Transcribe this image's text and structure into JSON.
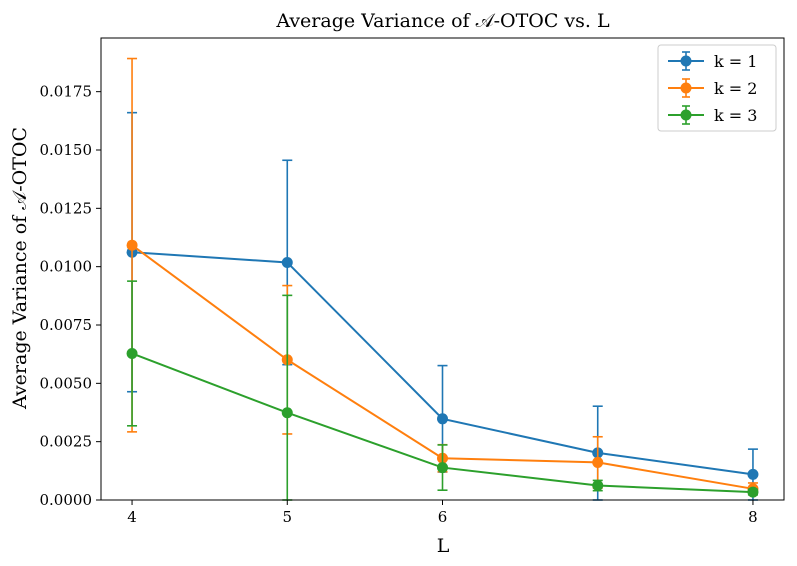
{
  "chart_data": {
    "type": "line",
    "title": "Average Variance of 𝒜-OTOC vs. L",
    "xlabel": "L",
    "ylabel": "Average Variance of 𝒜-OTOC",
    "xlim": [
      3.8,
      8.2
    ],
    "ylim": [
      0,
      0.0198
    ],
    "xticks": [
      4,
      5,
      6,
      8
    ],
    "xtick_labels": [
      "4",
      "5",
      "6",
      "8"
    ],
    "yticks": [
      0,
      0.0025,
      0.005,
      0.0075,
      0.01,
      0.0125,
      0.015,
      0.0175
    ],
    "ytick_labels": [
      "0.0000",
      "0.0025",
      "0.0050",
      "0.0075",
      "0.0100",
      "0.0125",
      "0.0150",
      "0.0175"
    ],
    "legend_position": "top-right",
    "grid": false,
    "series": [
      {
        "name": "k = 1",
        "color": "#1f77b4",
        "x": [
          4,
          5,
          6,
          7,
          8
        ],
        "y": [
          0.01062,
          0.01018,
          0.00348,
          0.00202,
          0.0011
        ],
        "err_low": [
          0.00598,
          0.00438,
          0.00228,
          0.00202,
          0.0011
        ],
        "err_high": [
          0.00598,
          0.00438,
          0.00228,
          0.002,
          0.00108
        ]
      },
      {
        "name": "k = 2",
        "color": "#ff7f0e",
        "x": [
          4,
          5,
          6,
          7,
          8
        ],
        "y": [
          0.01092,
          0.00601,
          0.00179,
          0.00161,
          0.00048
        ],
        "err_low": [
          0.008,
          0.00318,
          0.00058,
          0.0011,
          0.00025
        ],
        "err_high": [
          0.008,
          0.00318,
          0.00058,
          0.0011,
          0.00025
        ]
      },
      {
        "name": "k = 3",
        "color": "#2ca02c",
        "x": [
          4,
          5,
          6,
          7,
          8
        ],
        "y": [
          0.00628,
          0.00374,
          0.00139,
          0.00062,
          0.00034
        ],
        "err_low": [
          0.0031,
          0.00374,
          0.00097,
          0.00022,
          0.00012
        ],
        "err_high": [
          0.0031,
          0.00503,
          0.00097,
          0.00022,
          0.00012
        ]
      }
    ]
  }
}
